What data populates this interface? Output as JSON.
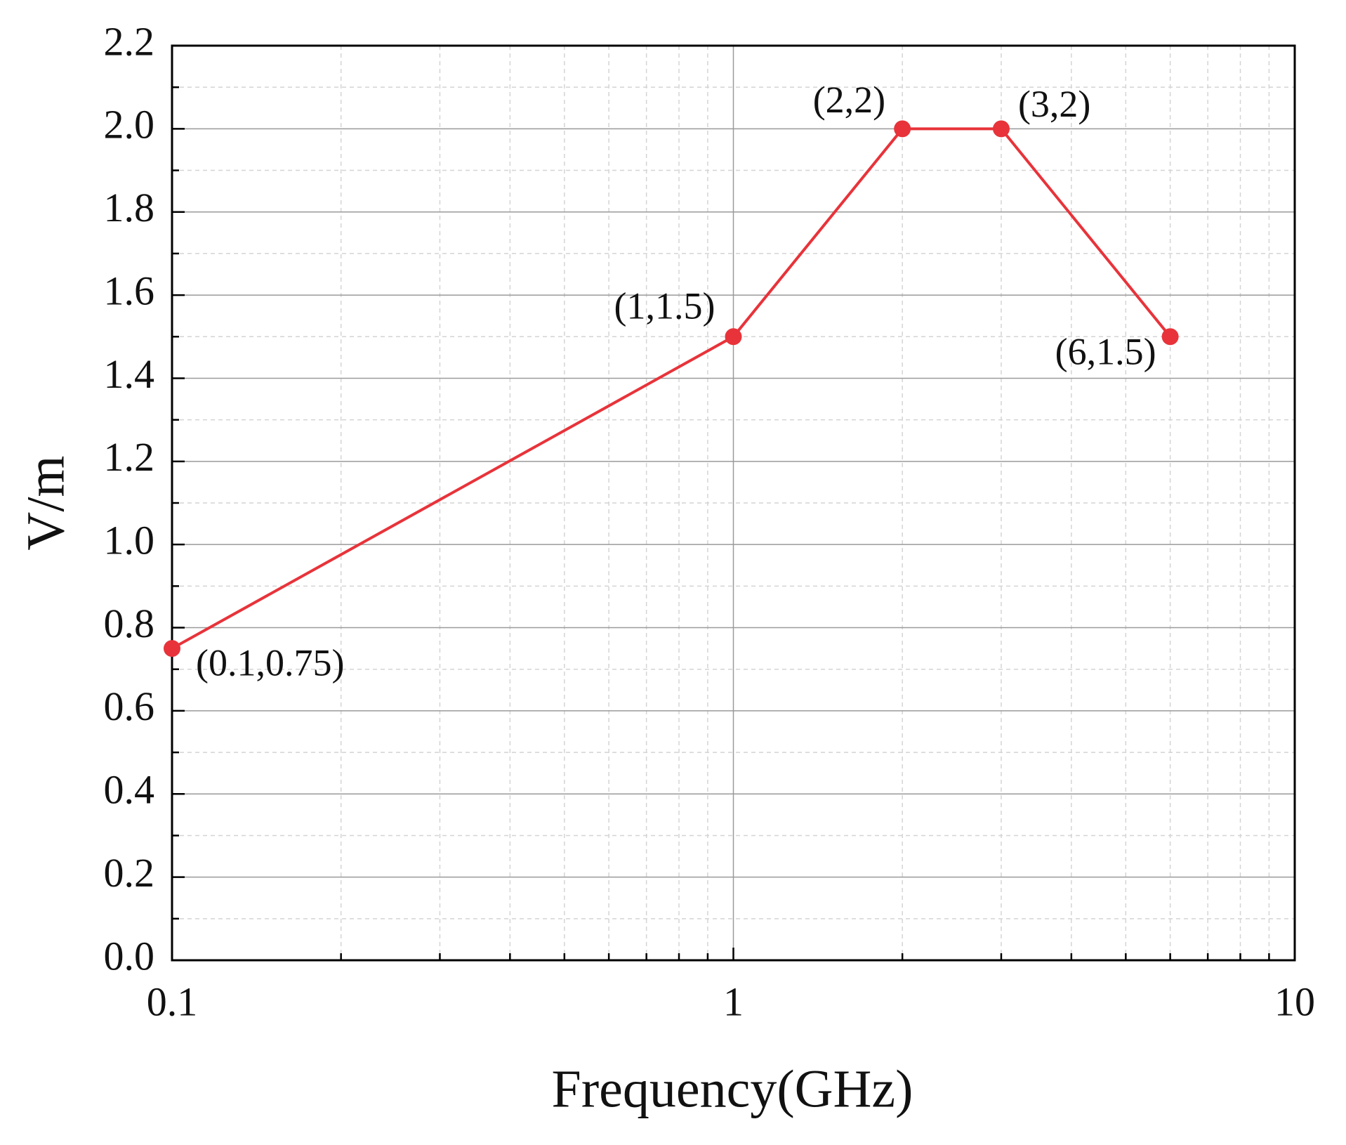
{
  "chart_data": {
    "type": "line",
    "x_label": "Frequency(GHz)",
    "y_label": "V/m",
    "x": [
      0.1,
      1,
      2,
      3,
      6
    ],
    "series": [
      {
        "color": "#e8333a",
        "values": [
          0.75,
          1.5,
          2,
          2,
          1.5
        ],
        "value_labels": [
          "(0.1,0.75)",
          "(1,1.5)",
          "(2,2)",
          "(3,2)",
          "(6,1.5)"
        ]
      }
    ],
    "xscale": "log",
    "xlim": [
      0.1,
      10
    ],
    "xticks": [
      0.1,
      1,
      10
    ],
    "xminorticks": [
      0.2,
      0.3,
      0.4,
      0.5,
      0.6,
      0.7,
      0.8,
      0.9,
      2,
      3,
      4,
      5,
      6,
      7,
      8,
      9
    ],
    "ylim": [
      0,
      2.2
    ],
    "yticks": [
      {
        "value": 0,
        "label": "0.0"
      },
      0.2,
      0.4,
      0.6,
      0.8,
      {
        "value": 1,
        "label": "1.0"
      },
      1.2,
      1.4,
      1.6,
      1.8,
      {
        "value": 2,
        "label": "2.0"
      },
      2.2
    ],
    "yminorticks": [
      0.1,
      0.3,
      0.5,
      0.7,
      0.9,
      1.1,
      1.3,
      1.5,
      1.7,
      1.9,
      2.1
    ],
    "grid": true,
    "minor_grid": true
  }
}
